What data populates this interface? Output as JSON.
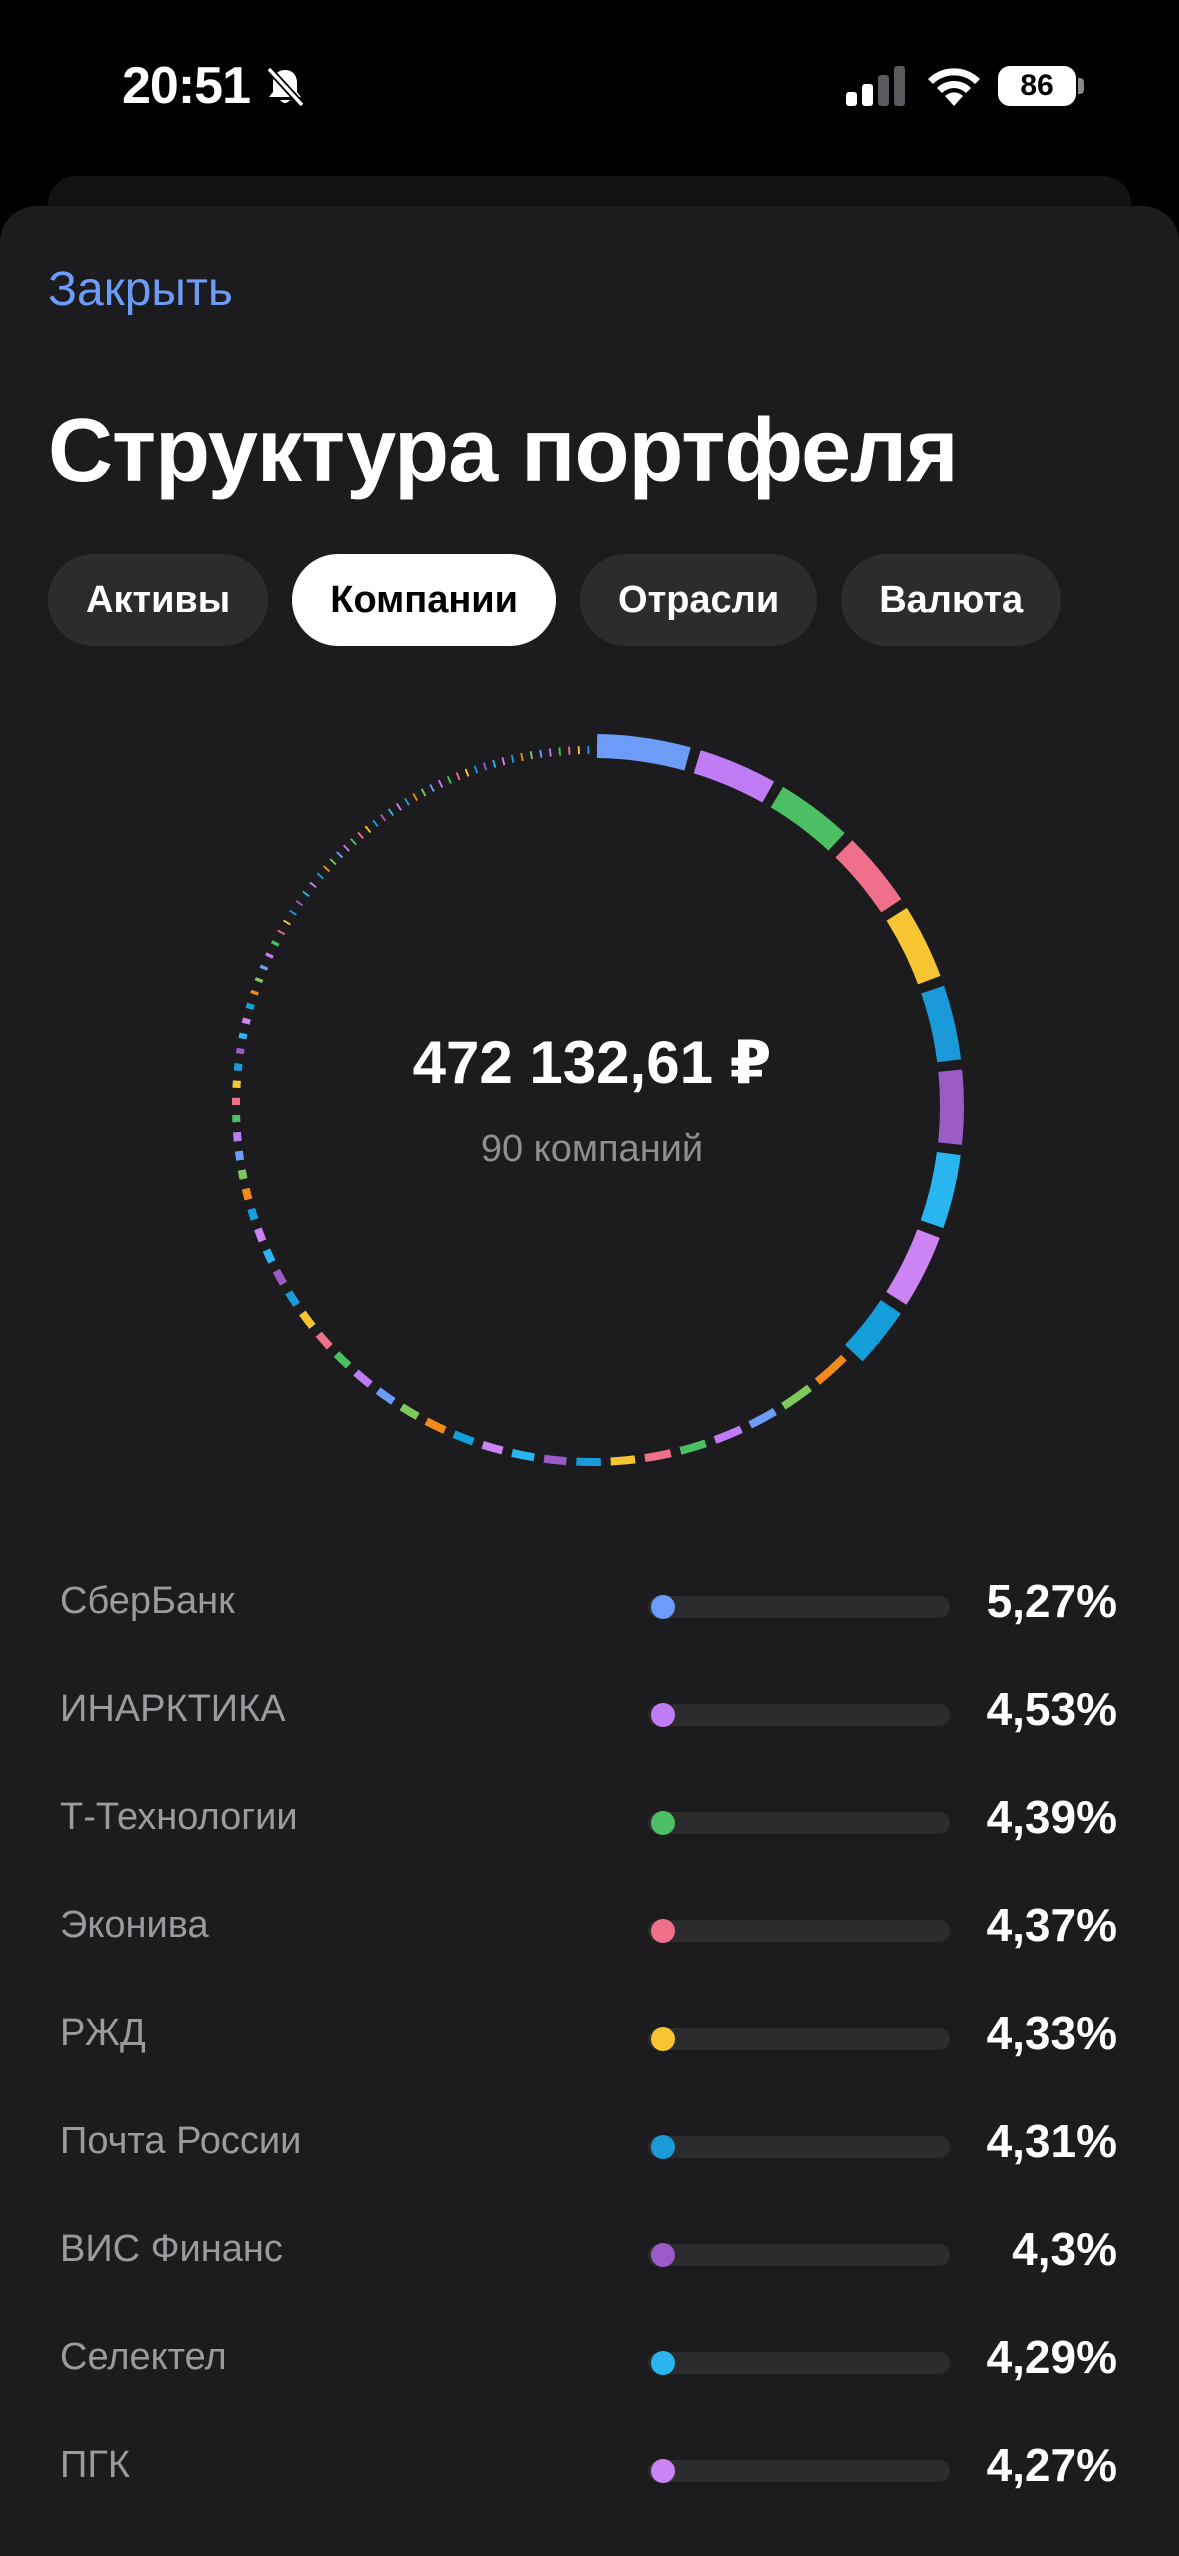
{
  "status_bar": {
    "time": "20:51",
    "battery": "86"
  },
  "header": {
    "close_label": "Закрыть",
    "title": "Структура портфеля"
  },
  "tabs": [
    {
      "label": "Активы",
      "active": false
    },
    {
      "label": "Компании",
      "active": true
    },
    {
      "label": "Отрасли",
      "active": false
    },
    {
      "label": "Валюта",
      "active": false
    }
  ],
  "summary": {
    "total": "472 132,61 ₽",
    "count": "90 компаний"
  },
  "colors": {
    "accent": "#6b9cf7",
    "palette": [
      "#6b9cf7",
      "#c07cf5",
      "#4dbf63",
      "#f0708a",
      "#f6c632",
      "#1a9ad8",
      "#9a5bc6",
      "#29b5ef",
      "#cc84f4",
      "#149fdb",
      "#f28a1b",
      "#7fc85e"
    ]
  },
  "companies": [
    {
      "name": "СберБанк",
      "percent": "5,27%",
      "color": "#6b9cf7"
    },
    {
      "name": "ИНАРКТИКА",
      "percent": "4,53%",
      "color": "#c07cf5"
    },
    {
      "name": "Т-Технологии",
      "percent": "4,39%",
      "color": "#4dbf63"
    },
    {
      "name": "Эконива",
      "percent": "4,37%",
      "color": "#f0708a"
    },
    {
      "name": "РЖД",
      "percent": "4,33%",
      "color": "#f6c632"
    },
    {
      "name": "Почта России",
      "percent": "4,31%",
      "color": "#1a9ad8"
    },
    {
      "name": "ВИС Финанс",
      "percent": "4,3%",
      "color": "#9a5bc6"
    },
    {
      "name": "Селектел",
      "percent": "4,29%",
      "color": "#29b5ef"
    },
    {
      "name": "ПГК",
      "percent": "4,27%",
      "color": "#cc84f4"
    }
  ],
  "ring_segments": [
    {
      "value": 5.27,
      "color": "#6b9cf7"
    },
    {
      "value": 4.53,
      "color": "#c07cf5"
    },
    {
      "value": 4.39,
      "color": "#4dbf63"
    },
    {
      "value": 4.37,
      "color": "#f0708a"
    },
    {
      "value": 4.33,
      "color": "#f6c632"
    },
    {
      "value": 4.31,
      "color": "#1a9ad8"
    },
    {
      "value": 4.3,
      "color": "#9a5bc6"
    },
    {
      "value": 4.29,
      "color": "#29b5ef"
    },
    {
      "value": 4.27,
      "color": "#cc84f4"
    },
    {
      "value": 3.6,
      "color": "#149fdb"
    },
    {
      "value": 2.4,
      "color": "#f28a1b"
    },
    {
      "value": 2.2,
      "color": "#7fc85e"
    },
    {
      "value": 2.0,
      "color": "#6b9cf7"
    },
    {
      "value": 2.0,
      "color": "#c07cf5"
    },
    {
      "value": 1.9,
      "color": "#4dbf63"
    },
    {
      "value": 1.9,
      "color": "#f0708a"
    },
    {
      "value": 1.8,
      "color": "#f6c632"
    },
    {
      "value": 1.8,
      "color": "#1a9ad8"
    },
    {
      "value": 1.7,
      "color": "#9a5bc6"
    },
    {
      "value": 1.7,
      "color": "#29b5ef"
    },
    {
      "value": 1.6,
      "color": "#cc84f4"
    },
    {
      "value": 1.6,
      "color": "#149fdb"
    },
    {
      "value": 1.6,
      "color": "#f28a1b"
    },
    {
      "value": 1.5,
      "color": "#7fc85e"
    },
    {
      "value": 1.5,
      "color": "#6b9cf7"
    },
    {
      "value": 1.5,
      "color": "#c07cf5"
    },
    {
      "value": 1.4,
      "color": "#4dbf63"
    },
    {
      "value": 1.4,
      "color": "#f0708a"
    },
    {
      "value": 1.4,
      "color": "#f6c632"
    },
    {
      "value": 1.3,
      "color": "#1a9ad8"
    },
    {
      "value": 1.3,
      "color": "#9a5bc6"
    },
    {
      "value": 1.2,
      "color": "#29b5ef"
    },
    {
      "value": 1.2,
      "color": "#cc84f4"
    },
    {
      "value": 1.1,
      "color": "#149fdb"
    },
    {
      "value": 1.1,
      "color": "#f28a1b"
    },
    {
      "value": 1.0,
      "color": "#7fc85e"
    },
    {
      "value": 1.0,
      "color": "#6b9cf7"
    },
    {
      "value": 1.0,
      "color": "#c07cf5"
    },
    {
      "value": 0.9,
      "color": "#4dbf63"
    },
    {
      "value": 0.9,
      "color": "#f0708a"
    },
    {
      "value": 0.9,
      "color": "#f6c632"
    },
    {
      "value": 0.9,
      "color": "#1a9ad8"
    },
    {
      "value": 0.8,
      "color": "#9a5bc6"
    },
    {
      "value": 0.8,
      "color": "#29b5ef"
    },
    {
      "value": 0.8,
      "color": "#cc84f4"
    },
    {
      "value": 0.8,
      "color": "#149fdb"
    },
    {
      "value": 0.7,
      "color": "#f28a1b"
    },
    {
      "value": 0.7,
      "color": "#7fc85e"
    },
    {
      "value": 0.7,
      "color": "#6b9cf7"
    },
    {
      "value": 0.7,
      "color": "#c07cf5"
    },
    {
      "value": 0.7,
      "color": "#4dbf63"
    },
    {
      "value": 0.6,
      "color": "#f0708a"
    },
    {
      "value": 0.6,
      "color": "#f6c632"
    },
    {
      "value": 0.6,
      "color": "#1a9ad8"
    },
    {
      "value": 0.6,
      "color": "#9a5bc6"
    },
    {
      "value": 0.6,
      "color": "#29b5ef"
    },
    {
      "value": 0.6,
      "color": "#cc84f4"
    },
    {
      "value": 0.5,
      "color": "#149fdb"
    },
    {
      "value": 0.5,
      "color": "#f28a1b"
    },
    {
      "value": 0.5,
      "color": "#7fc85e"
    },
    {
      "value": 0.5,
      "color": "#6b9cf7"
    },
    {
      "value": 0.5,
      "color": "#c07cf5"
    },
    {
      "value": 0.5,
      "color": "#4dbf63"
    },
    {
      "value": 0.5,
      "color": "#f0708a"
    },
    {
      "value": 0.5,
      "color": "#f6c632"
    },
    {
      "value": 0.5,
      "color": "#1a9ad8"
    },
    {
      "value": 0.5,
      "color": "#9a5bc6"
    },
    {
      "value": 0.5,
      "color": "#29b5ef"
    },
    {
      "value": 0.5,
      "color": "#cc84f4"
    },
    {
      "value": 0.5,
      "color": "#149fdb"
    },
    {
      "value": 0.5,
      "color": "#f28a1b"
    },
    {
      "value": 0.5,
      "color": "#7fc85e"
    },
    {
      "value": 0.5,
      "color": "#6b9cf7"
    },
    {
      "value": 0.5,
      "color": "#c07cf5"
    },
    {
      "value": 0.5,
      "color": "#4dbf63"
    },
    {
      "value": 0.5,
      "color": "#f0708a"
    },
    {
      "value": 0.5,
      "color": "#f6c632"
    },
    {
      "value": 0.5,
      "color": "#1a9ad8"
    },
    {
      "value": 0.5,
      "color": "#9a5bc6"
    },
    {
      "value": 0.5,
      "color": "#29b5ef"
    },
    {
      "value": 0.5,
      "color": "#cc84f4"
    },
    {
      "value": 0.5,
      "color": "#149fdb"
    },
    {
      "value": 0.5,
      "color": "#f28a1b"
    },
    {
      "value": 0.5,
      "color": "#7fc85e"
    },
    {
      "value": 0.5,
      "color": "#6b9cf7"
    },
    {
      "value": 0.5,
      "color": "#c07cf5"
    },
    {
      "value": 0.5,
      "color": "#4dbf63"
    },
    {
      "value": 0.5,
      "color": "#f0708a"
    },
    {
      "value": 0.5,
      "color": "#f6c632"
    },
    {
      "value": 0.5,
      "color": "#1a9ad8"
    }
  ]
}
